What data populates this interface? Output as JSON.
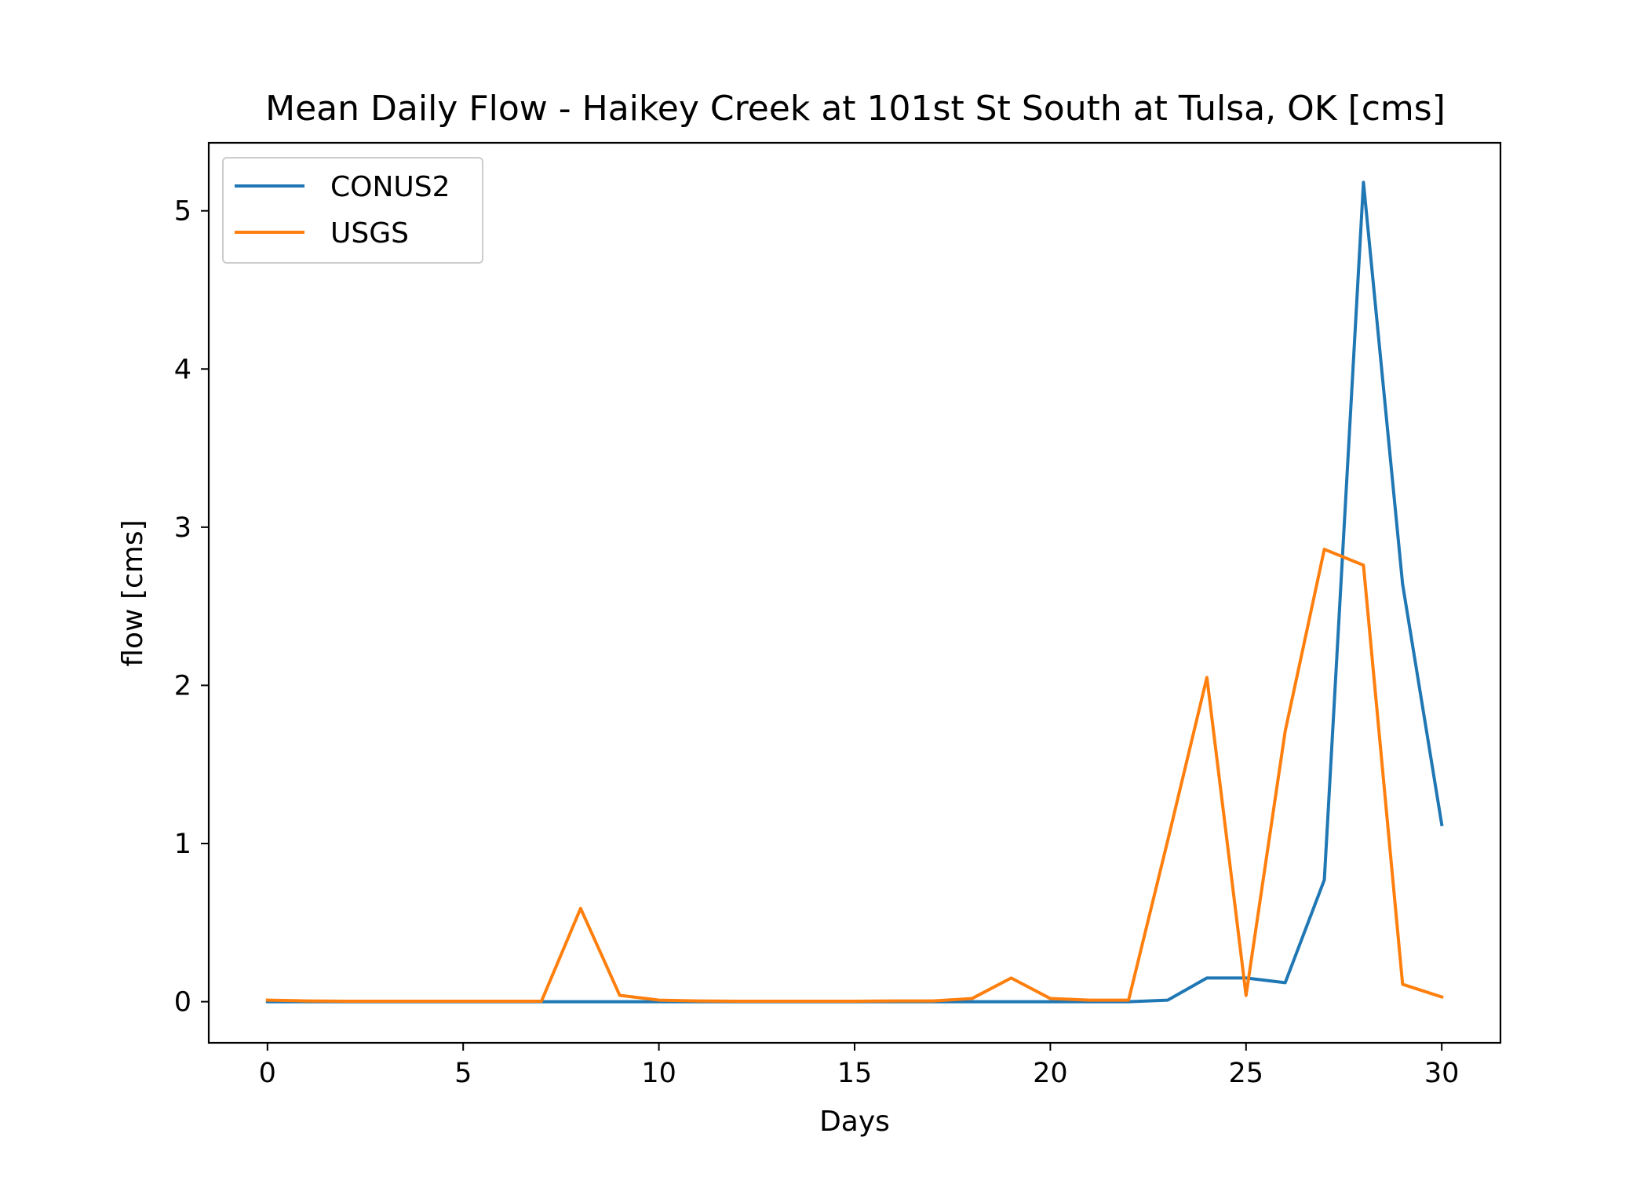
{
  "chart_data": {
    "type": "line",
    "title": "Mean Daily Flow - Haikey Creek at 101st St South at Tulsa, OK [cms]",
    "xlabel": "Days",
    "ylabel": "flow [cms]",
    "xlim": [
      -1.5,
      31.5
    ],
    "ylim": [
      -0.26,
      5.43
    ],
    "xticks": [
      0,
      5,
      10,
      15,
      20,
      25,
      30
    ],
    "yticks": [
      0,
      1,
      2,
      3,
      4,
      5
    ],
    "grid": false,
    "legend": "top-left",
    "x": [
      0,
      1,
      2,
      3,
      4,
      5,
      6,
      7,
      8,
      9,
      10,
      11,
      12,
      13,
      14,
      15,
      16,
      17,
      18,
      19,
      20,
      21,
      22,
      23,
      24,
      25,
      26,
      27,
      28,
      29,
      30
    ],
    "series": [
      {
        "name": "CONUS2",
        "color": "#1f77b4",
        "values": [
          0,
          0,
          0,
          0,
          0,
          0,
          0,
          0,
          0,
          0,
          0,
          0,
          0,
          0,
          0,
          0,
          0,
          0,
          0,
          0,
          0,
          0,
          0,
          0.01,
          0.15,
          0.15,
          0.12,
          0.77,
          5.18,
          2.64,
          1.12
        ]
      },
      {
        "name": "USGS",
        "color": "#ff7f0e",
        "values": [
          0.01,
          0.005,
          0.003,
          0.003,
          0.003,
          0.003,
          0.003,
          0.003,
          0.59,
          0.04,
          0.01,
          0.005,
          0.003,
          0.003,
          0.003,
          0.003,
          0.005,
          0.005,
          0.02,
          0.15,
          0.02,
          0.01,
          0.01,
          1.02,
          2.05,
          0.04,
          1.71,
          2.86,
          2.76,
          0.11,
          0.03
        ]
      }
    ]
  }
}
